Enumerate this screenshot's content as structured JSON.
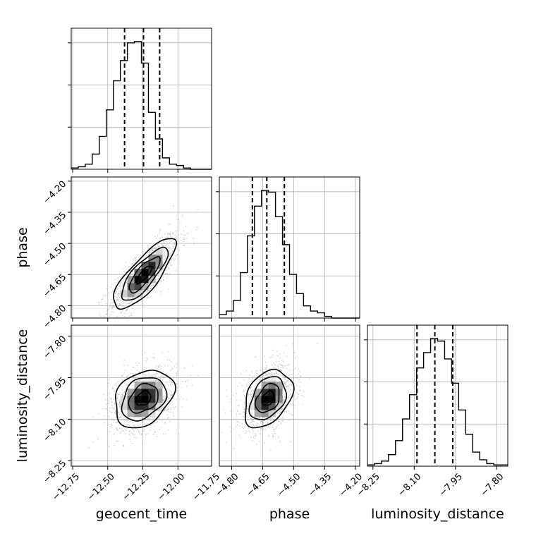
{
  "chart_data": {
    "type": "corner",
    "parameters": [
      {
        "name": "geocent_time",
        "ticks": [
          -12.75,
          -12.5,
          -12.25,
          -12.0,
          -11.75
        ],
        "tick_labels": [
          "−12.75",
          "−12.50",
          "−12.25",
          "−12.00",
          "−11.75"
        ],
        "range": [
          -12.76,
          -11.76
        ],
        "quantiles": [
          -12.38,
          -12.245,
          -12.13
        ],
        "histogram": {
          "bin_start": -12.76,
          "bin_width": 0.05,
          "counts": [
            1,
            2,
            4,
            12,
            26,
            47,
            70,
            86,
            100,
            101,
            84,
            45,
            24,
            9,
            4,
            3,
            1,
            0,
            0,
            0
          ]
        }
      },
      {
        "name": "phase",
        "ticks": [
          -4.8,
          -4.65,
          -4.5,
          -4.35,
          -4.2
        ],
        "tick_labels": [
          "−4.80",
          "−4.65",
          "−4.50",
          "−4.35",
          "−4.20"
        ],
        "range": [
          -4.86,
          -4.18
        ],
        "quantiles": [
          -4.7,
          -4.63,
          -4.545
        ],
        "histogram": {
          "bin_start": -4.86,
          "bin_width": 0.034,
          "counts": [
            2,
            4,
            10,
            26,
            47,
            64,
            73,
            72,
            58,
            42,
            25,
            14,
            7,
            4,
            3,
            1,
            0,
            0,
            0,
            0
          ]
        }
      },
      {
        "name": "luminosity_distance",
        "ticks": [
          -8.25,
          -8.1,
          -7.95,
          -7.8
        ],
        "tick_labels": [
          "−8.25",
          "−8.10",
          "−7.95",
          "−7.80"
        ],
        "range": [
          -8.27,
          -7.76
        ],
        "quantiles": [
          -8.09,
          -8.025,
          -7.96
        ],
        "histogram": {
          "bin_start": -8.27,
          "bin_width": 0.0255,
          "counts": [
            1,
            2,
            4,
            9,
            20,
            37,
            56,
            77,
            89,
            100,
            98,
            84,
            65,
            44,
            25,
            11,
            5,
            2,
            1,
            1
          ]
        }
      }
    ],
    "pairs": [
      {
        "x_param": 0,
        "y_param": 1,
        "center": [
          -12.24,
          -4.65
        ],
        "sigma": [
          0.11,
          0.085
        ],
        "correlation": 0.8,
        "contour_levels": [
          0.5,
          1.0,
          1.5,
          2.0
        ]
      },
      {
        "x_param": 0,
        "y_param": 2,
        "center": [
          -12.245,
          -8.025
        ],
        "sigma": [
          0.105,
          0.052
        ],
        "correlation": 0.3,
        "contour_levels": [
          0.5,
          1.0,
          1.5,
          2.0
        ]
      },
      {
        "x_param": 1,
        "y_param": 2,
        "center": [
          -4.625,
          -8.025
        ],
        "sigma": [
          0.058,
          0.052
        ],
        "correlation": 0.35,
        "contour_levels": [
          0.5,
          1.0,
          1.5,
          2.0
        ]
      }
    ],
    "grid": true,
    "colors": {
      "line": "#000000",
      "grid": "#b0b0b0",
      "points": "#888888"
    }
  }
}
